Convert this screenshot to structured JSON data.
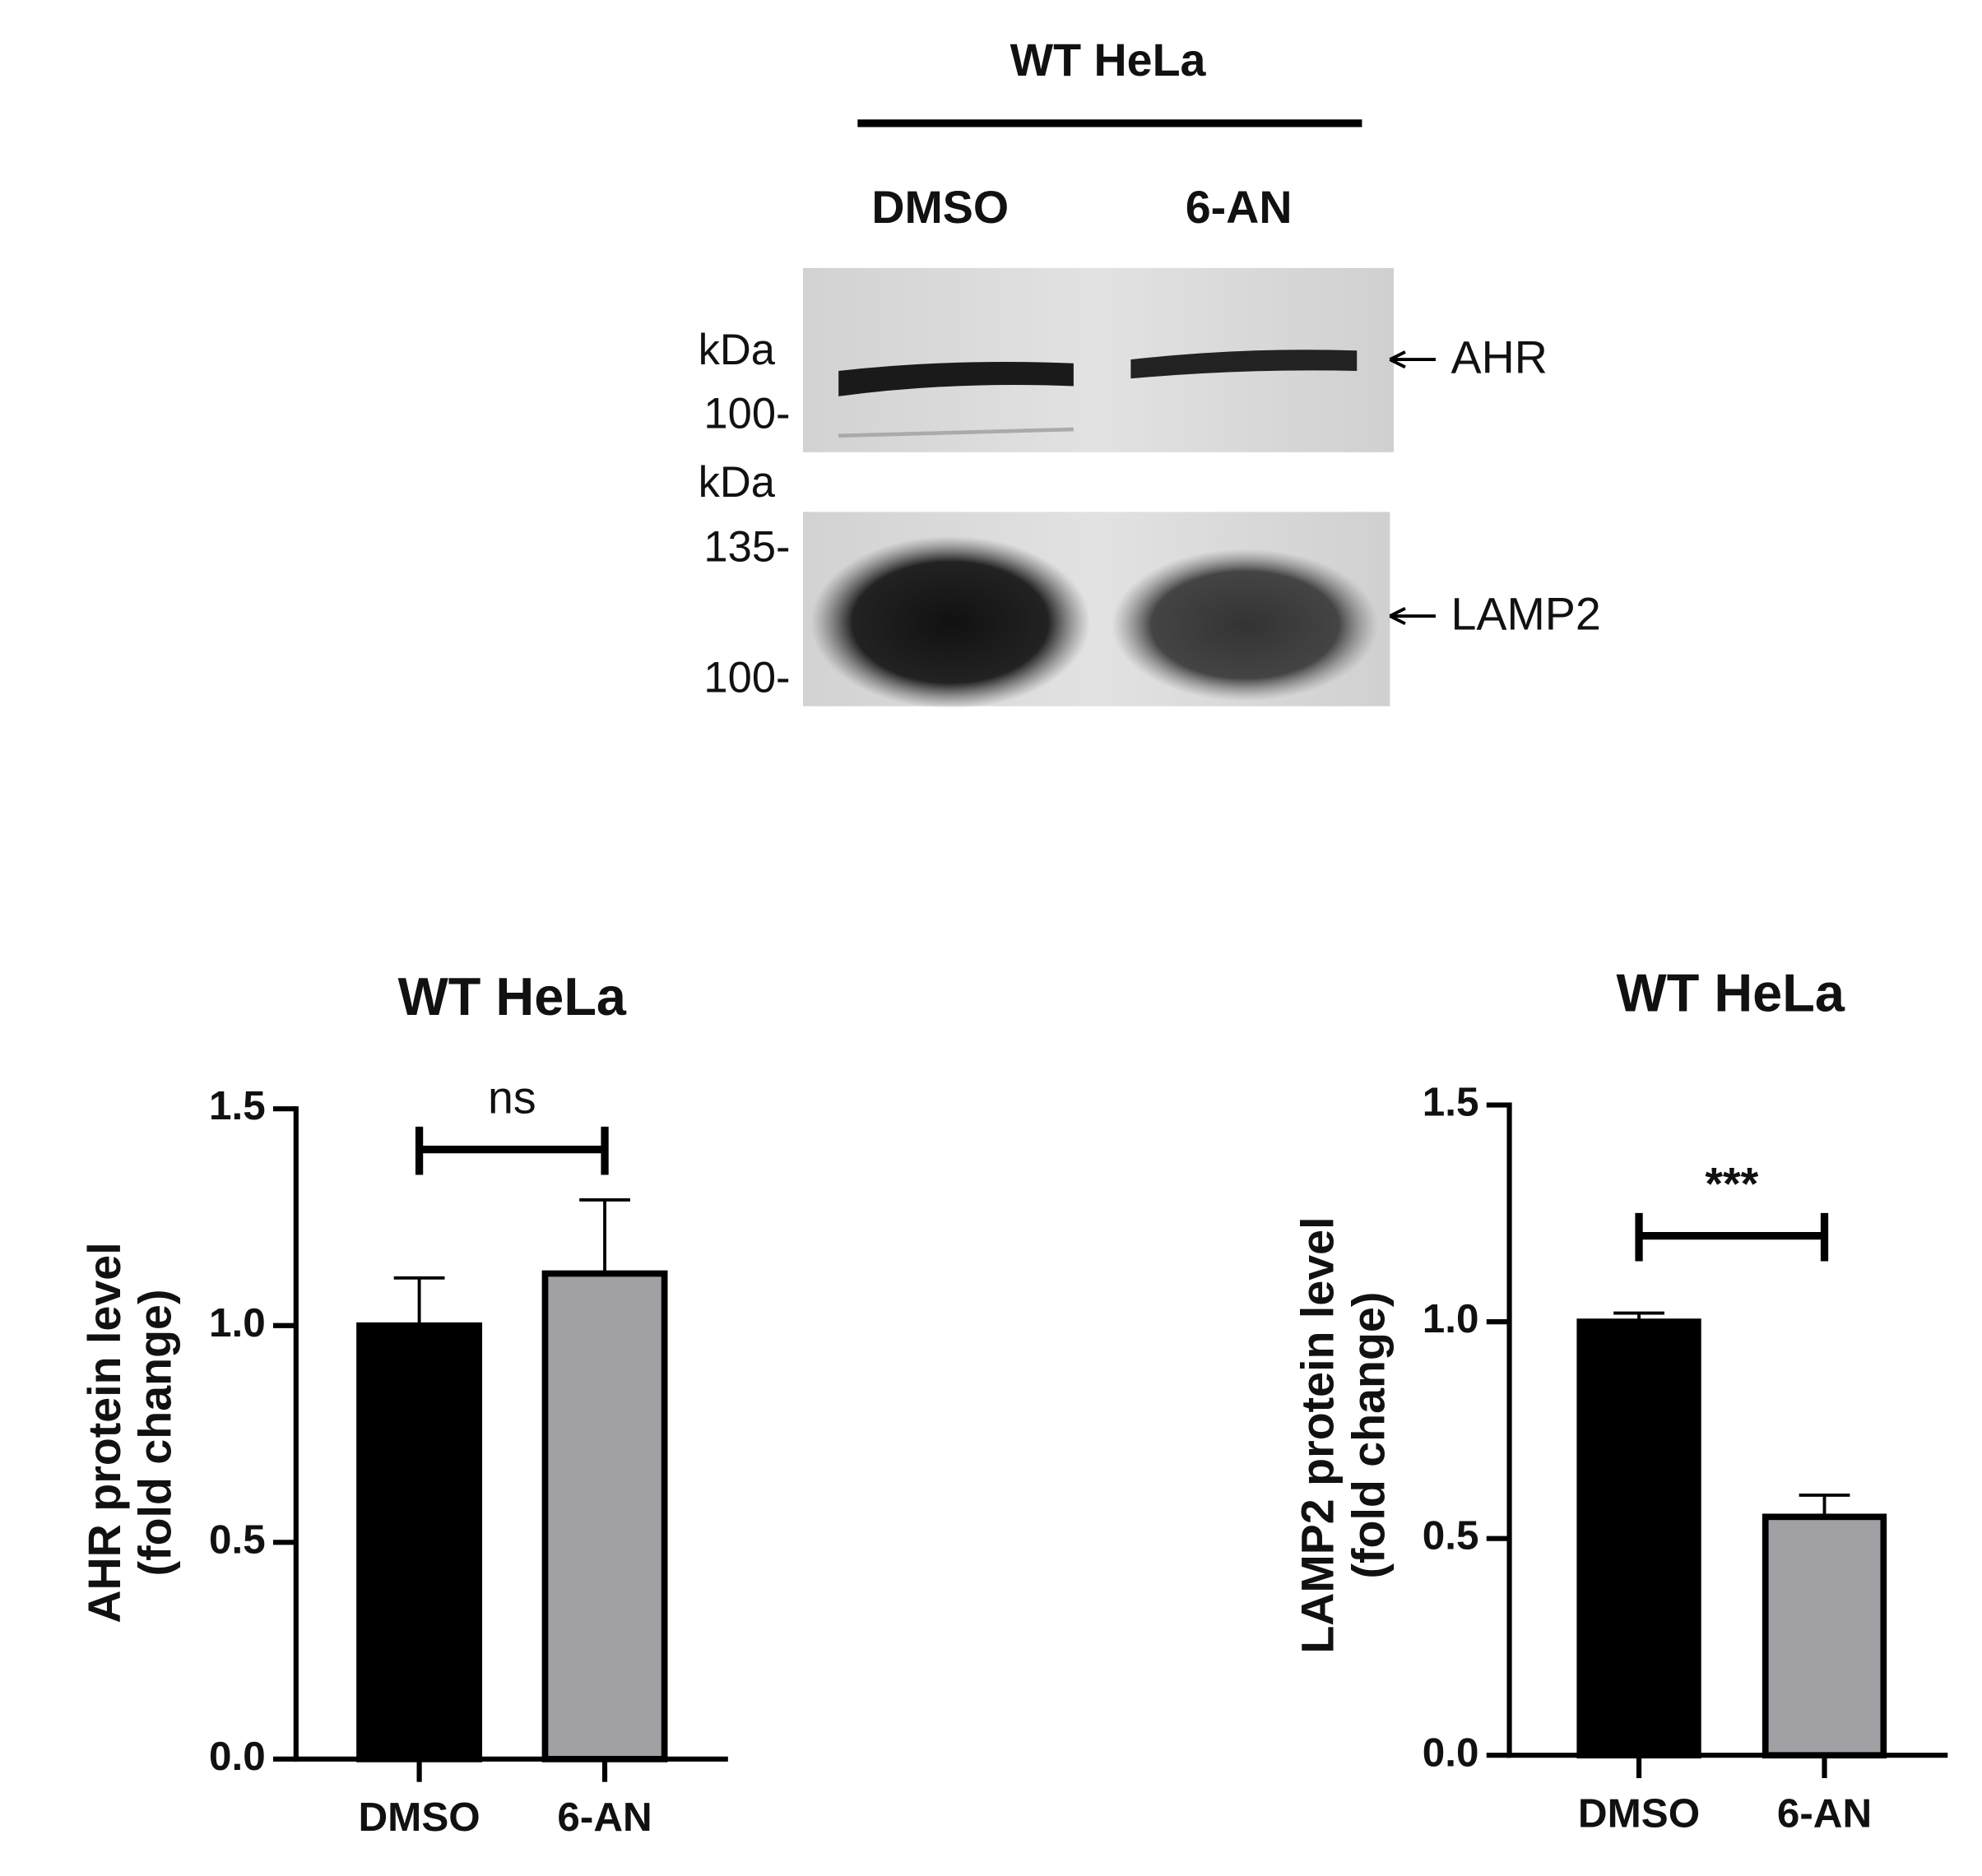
{
  "blot": {
    "title": "WT HeLa",
    "lanes": [
      "DMSO",
      "6-AN"
    ],
    "panels": [
      {
        "markers": [
          "kDa",
          "100-"
        ],
        "label": "AHR"
      },
      {
        "markers": [
          "kDa",
          "135-",
          "100-"
        ],
        "label": "LAMP2"
      }
    ]
  },
  "chart_data": [
    {
      "type": "bar",
      "title": "WT HeLa",
      "y_label": [
        "AHR protein level",
        "(fold change)"
      ],
      "categories": [
        "DMSO",
        "6-AN"
      ],
      "values": [
        1.0,
        1.12
      ],
      "errors": [
        0.11,
        0.17
      ],
      "colors": [
        "#000000",
        "#a0a0a5"
      ],
      "significance": "ns",
      "ylim": [
        0,
        1.5
      ],
      "yticks": [
        {
          "value": 0,
          "label": "0.0"
        },
        0.5,
        {
          "value": 1,
          "label": "1.0"
        },
        1.5
      ]
    },
    {
      "type": "bar",
      "title": "WT HeLa",
      "y_label": [
        "LAMP2 protein level",
        "(fold change)"
      ],
      "categories": [
        "DMSO",
        "6-AN"
      ],
      "values": [
        1.0,
        0.55
      ],
      "errors": [
        0.02,
        0.05
      ],
      "colors": [
        "#000000",
        "#a0a0a5"
      ],
      "significance": "***",
      "ylim": [
        0,
        1.5
      ],
      "yticks": [
        {
          "value": 0,
          "label": "0.0"
        },
        0.5,
        {
          "value": 1,
          "label": "1.0"
        },
        1.5
      ]
    }
  ]
}
